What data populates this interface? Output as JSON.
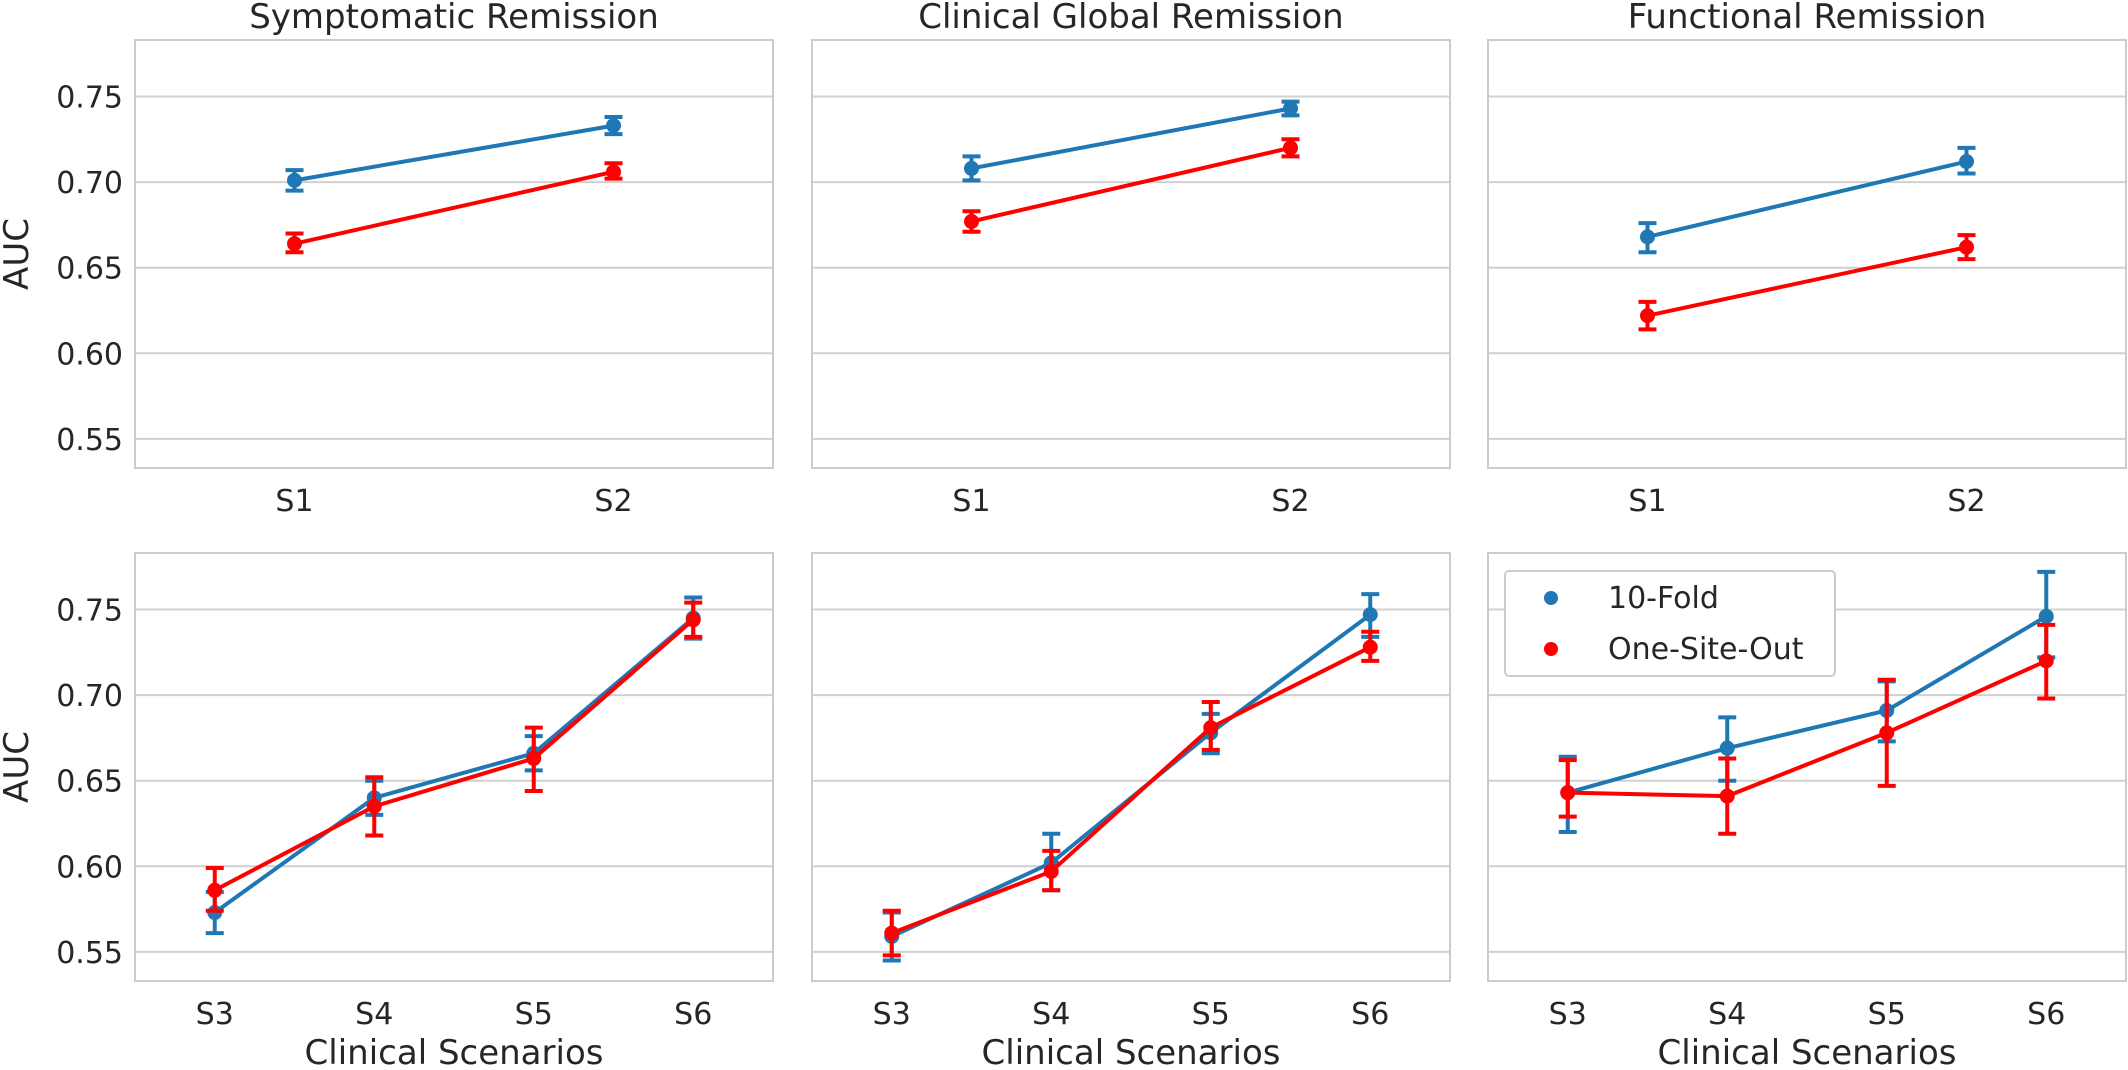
{
  "colors": {
    "ten_fold": "#1f77b4",
    "one_site_out": "#ff0000"
  },
  "legend": {
    "placement": "upper-left of bottom-right panel",
    "entries": [
      "10-Fold",
      "One-Site-Out"
    ]
  },
  "chart_data": [
    {
      "type": "line",
      "title": "Symptomatic Remission",
      "xlabel": "",
      "ylabel": "AUC",
      "categories": [
        "S1",
        "S2"
      ],
      "ylim": [
        0.533,
        0.783
      ],
      "yticks": [
        "0.55",
        "0.60",
        "0.65",
        "0.70",
        "0.75"
      ],
      "grid": true,
      "series": [
        {
          "name": "10-Fold",
          "values": [
            0.701,
            0.733
          ],
          "lower": [
            0.695,
            0.728
          ],
          "upper": [
            0.707,
            0.738
          ]
        },
        {
          "name": "One-Site-Out",
          "values": [
            0.664,
            0.706
          ],
          "lower": [
            0.659,
            0.702
          ],
          "upper": [
            0.67,
            0.711
          ]
        }
      ]
    },
    {
      "type": "line",
      "title": "Clinical Global Remission",
      "xlabel": "",
      "ylabel": "",
      "categories": [
        "S1",
        "S2"
      ],
      "ylim": [
        0.533,
        0.783
      ],
      "grid": true,
      "series": [
        {
          "name": "10-Fold",
          "values": [
            0.708,
            0.743
          ],
          "lower": [
            0.701,
            0.739
          ],
          "upper": [
            0.715,
            0.747
          ]
        },
        {
          "name": "One-Site-Out",
          "values": [
            0.677,
            0.72
          ],
          "lower": [
            0.671,
            0.715
          ],
          "upper": [
            0.683,
            0.725
          ]
        }
      ]
    },
    {
      "type": "line",
      "title": "Functional Remission",
      "xlabel": "",
      "ylabel": "",
      "categories": [
        "S1",
        "S2"
      ],
      "ylim": [
        0.533,
        0.783
      ],
      "grid": true,
      "series": [
        {
          "name": "10-Fold",
          "values": [
            0.668,
            0.712
          ],
          "lower": [
            0.659,
            0.705
          ],
          "upper": [
            0.676,
            0.72
          ]
        },
        {
          "name": "One-Site-Out",
          "values": [
            0.622,
            0.662
          ],
          "lower": [
            0.614,
            0.655
          ],
          "upper": [
            0.63,
            0.669
          ]
        }
      ]
    },
    {
      "type": "line",
      "title": "",
      "xlabel": "Clinical Scenarios",
      "ylabel": "AUC",
      "categories": [
        "S3",
        "S4",
        "S5",
        "S6"
      ],
      "ylim": [
        0.533,
        0.783
      ],
      "yticks": [
        "0.55",
        "0.60",
        "0.65",
        "0.70",
        "0.75"
      ],
      "grid": true,
      "series": [
        {
          "name": "10-Fold",
          "values": [
            0.573,
            0.64,
            0.666,
            0.745
          ],
          "lower": [
            0.561,
            0.63,
            0.656,
            0.733
          ],
          "upper": [
            0.585,
            0.65,
            0.676,
            0.757
          ]
        },
        {
          "name": "One-Site-Out",
          "values": [
            0.586,
            0.635,
            0.663,
            0.744
          ],
          "lower": [
            0.574,
            0.618,
            0.644,
            0.734
          ],
          "upper": [
            0.599,
            0.652,
            0.681,
            0.754
          ]
        }
      ]
    },
    {
      "type": "line",
      "title": "",
      "xlabel": "Clinical Scenarios",
      "ylabel": "",
      "categories": [
        "S3",
        "S4",
        "S5",
        "S6"
      ],
      "ylim": [
        0.533,
        0.783
      ],
      "grid": true,
      "series": [
        {
          "name": "10-Fold",
          "values": [
            0.559,
            0.602,
            0.678,
            0.747
          ],
          "lower": [
            0.545,
            0.586,
            0.666,
            0.734
          ],
          "upper": [
            0.573,
            0.619,
            0.689,
            0.759
          ]
        },
        {
          "name": "One-Site-Out",
          "values": [
            0.561,
            0.597,
            0.681,
            0.728
          ],
          "lower": [
            0.548,
            0.586,
            0.668,
            0.72
          ],
          "upper": [
            0.574,
            0.609,
            0.696,
            0.737
          ]
        }
      ]
    },
    {
      "type": "line",
      "title": "",
      "xlabel": "Clinical Scenarios",
      "ylabel": "",
      "categories": [
        "S3",
        "S4",
        "S5",
        "S6"
      ],
      "ylim": [
        0.533,
        0.783
      ],
      "grid": true,
      "series": [
        {
          "name": "10-Fold",
          "values": [
            0.643,
            0.669,
            0.691,
            0.746
          ],
          "lower": [
            0.62,
            0.65,
            0.673,
            0.722
          ],
          "upper": [
            0.664,
            0.687,
            0.708,
            0.772
          ]
        },
        {
          "name": "One-Site-Out",
          "values": [
            0.643,
            0.641,
            0.678,
            0.72
          ],
          "lower": [
            0.629,
            0.619,
            0.647,
            0.698
          ],
          "upper": [
            0.662,
            0.663,
            0.709,
            0.741
          ]
        }
      ]
    }
  ]
}
